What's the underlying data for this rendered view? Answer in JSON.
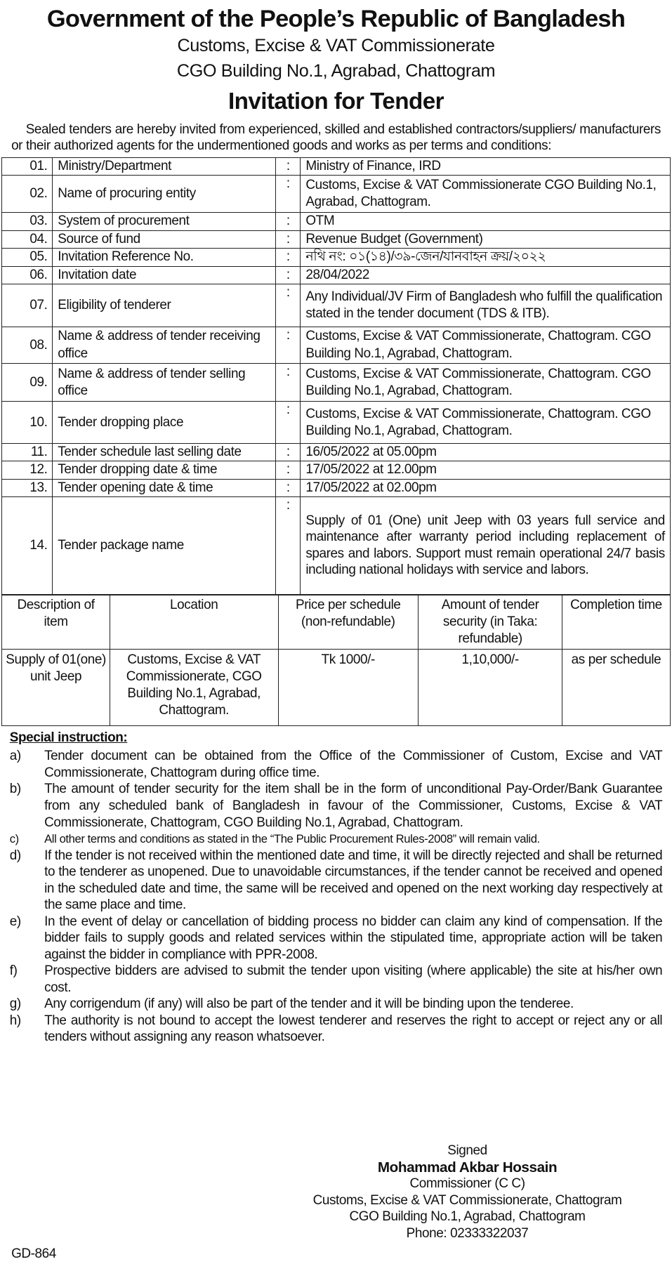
{
  "header": {
    "title": "Government of the People’s Republic of Bangladesh",
    "line1": "Customs, Excise & VAT Commissionerate",
    "line2": "CGO Building No.1, Agrabad, Chattogram",
    "doc_title": "Invitation for Tender"
  },
  "intro": "Sealed tenders are hereby invited from experienced, skilled and established contractors/suppliers/ manufacturers or their authorized agents for the undermentioned goods and works as per terms and conditions:",
  "rows": [
    {
      "no": "01.",
      "label": "Ministry/Department",
      "value": "Ministry of Finance, IRD"
    },
    {
      "no": "02.",
      "label": "Name of procuring entity",
      "value": "Customs, Excise & VAT Commissionerate CGO Building No.1, Agrabad, Chattogram."
    },
    {
      "no": "03.",
      "label": "System of procurement",
      "value": "OTM"
    },
    {
      "no": "04.",
      "label": "Source of fund",
      "value": "Revenue Budget (Government)"
    },
    {
      "no": "05.",
      "label": "Invitation Reference No.",
      "value": "নথি নং: ০১(১৪)/৩৯-জেন/যানবাহন ক্রয়/২০২২"
    },
    {
      "no": "06.",
      "label": "Invitation date",
      "value": "28/04/2022"
    },
    {
      "no": "07.",
      "label": "Eligibility of tenderer",
      "value": "Any Individual/JV Firm of Bangladesh who fulfill the qualification stated in the tender document (TDS & ITB)."
    },
    {
      "no": "08.",
      "label": "Name & address of tender receiving office",
      "value": "Customs, Excise & VAT Commissionerate, Chattogram. CGO Building No.1, Agrabad, Chattogram."
    },
    {
      "no": "09.",
      "label": "Name & address of tender selling office",
      "value": "Customs, Excise & VAT Commissionerate, Chattogram. CGO Building No.1, Agrabad, Chattogram."
    },
    {
      "no": "10.",
      "label": "Tender dropping place",
      "value": "Customs, Excise & VAT Commissionerate, Chattogram. CGO Building No.1, Agrabad, Chattogram."
    },
    {
      "no": "11.",
      "label": "Tender schedule last selling date",
      "value": "16/05/2022 at 05.00pm"
    },
    {
      "no": "12.",
      "label": "Tender dropping date & time",
      "value": "17/05/2022 at 12.00pm"
    },
    {
      "no": "13.",
      "label": "Tender opening date & time",
      "value": "17/05/2022 at 02.00pm"
    },
    {
      "no": "14.",
      "label": "Tender package name",
      "value": "Supply of 01 (One) unit Jeep with 03 years full service and maintenance after warranty period including replacement of spares and labors. Support must remain operational 24/7 basis including national holidays with service and labors."
    }
  ],
  "colon": ":",
  "items_table": {
    "headers": [
      "Description of item",
      "Location",
      "Price per schedule (non-refundable)",
      "Amount of tender security (in Taka: refundable)",
      "Completion time"
    ],
    "row": [
      "Supply of 01(one) unit Jeep",
      "Customs, Excise & VAT Commissionerate, CGO Building No.1, Agrabad, Chattogram.",
      "Tk 1000/-",
      "1,10,000/-",
      "as per schedule"
    ]
  },
  "special": {
    "title": "Special instruction:",
    "items": [
      {
        "m": "a)",
        "t": "Tender document can be obtained from the Office of the Commissioner of Custom, Excise and VAT Commissionerate, Chattogram during office time."
      },
      {
        "m": "b)",
        "t": "The amount of tender security for the item shall be in the form of unconditional Pay-Order/Bank Guarantee from any scheduled bank of Bangladesh in favour of the Commissioner, Customs, Excise & VAT Commissionerate, Chattogram, CGO Building No.1, Agrabad, Chattogram."
      },
      {
        "m": "c)",
        "t": "All other terms and conditions as stated in the “The Public Procurement Rules-2008” will remain valid."
      },
      {
        "m": "d)",
        "t": "If the tender is not received within the mentioned date and time, it will be directly rejected and shall be returned to the tenderer as unopened. Due to unavoidable circumstances, if the tender cannot be received and opened in the scheduled date and time, the same will be received and opened on the next working day respectively at the same place and time."
      },
      {
        "m": "e)",
        "t": "In the event of delay or cancellation of bidding process no bidder can claim any kind of compensation. If the bidder fails to supply goods and related services within the stipulated time, appropriate action will be taken against the bidder in compliance with PPR-2008."
      },
      {
        "m": "f)",
        "t": "Prospective bidders are advised to submit the tender upon visiting (where applicable) the site at his/her own cost."
      },
      {
        "m": "g)",
        "t": "Any corrigendum (if any) will also be part of the tender and it will be binding upon the tenderee."
      },
      {
        "m": "h)",
        "t": "The authority is not bound to accept the lowest tenderer and reserves the right to accept or reject any or all tenders without assigning any reason whatsoever."
      }
    ]
  },
  "signature": {
    "signed": "Signed",
    "name": "Mohammad Akbar Hossain",
    "title": "Commissioner (C C)",
    "office": "Customs, Excise & VAT Commissionerate, Chattogram",
    "address": "CGO Building No.1, Agrabad, Chattogram",
    "phone": "Phone: 02333322037"
  },
  "code": "GD-864"
}
